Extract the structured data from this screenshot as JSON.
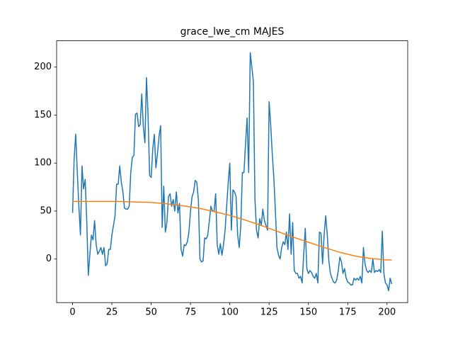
{
  "chart_data": {
    "type": "line",
    "title": "grace_lwe_cm MAJES",
    "xlim": [
      -10.15,
      213.15
    ],
    "ylim": [
      -45.4,
      227.4
    ],
    "xticks": [
      0,
      25,
      50,
      75,
      100,
      125,
      150,
      175,
      200
    ],
    "yticks": [
      0,
      50,
      100,
      150,
      200
    ],
    "series": [
      {
        "color": "#1f77b4",
        "x": [
          0,
          1,
          2,
          3,
          4,
          5,
          6,
          7,
          8,
          9,
          10,
          11,
          12,
          13,
          14,
          15,
          16,
          17,
          18,
          19,
          20,
          21,
          22,
          23,
          24,
          25,
          26,
          27,
          28,
          29,
          30,
          31,
          32,
          33,
          34,
          35,
          36,
          37,
          38,
          39,
          40,
          41,
          42,
          43,
          44,
          45,
          46,
          47,
          48,
          49,
          50,
          51,
          52,
          53,
          54,
          55,
          56,
          57,
          58,
          59,
          60,
          61,
          62,
          63,
          64,
          65,
          66,
          67,
          68,
          69,
          70,
          71,
          72,
          73,
          74,
          75,
          76,
          77,
          78,
          79,
          80,
          81,
          82,
          83,
          84,
          85,
          86,
          87,
          88,
          89,
          90,
          91,
          92,
          93,
          94,
          95,
          96,
          97,
          98,
          99,
          100,
          101,
          102,
          103,
          104,
          105,
          106,
          107,
          108,
          109,
          110,
          111,
          112,
          113,
          114,
          115,
          116,
          117,
          118,
          119,
          120,
          121,
          122,
          123,
          124,
          125,
          126,
          127,
          128,
          129,
          130,
          131,
          132,
          133,
          134,
          135,
          136,
          137,
          138,
          139,
          140,
          141,
          142,
          143,
          144,
          145,
          146,
          147,
          148,
          149,
          150,
          151,
          152,
          153,
          154,
          155,
          156,
          157,
          158,
          159,
          160,
          161,
          162,
          163,
          164,
          165,
          166,
          167,
          168,
          169,
          170,
          171,
          172,
          173,
          174,
          175,
          176,
          177,
          178,
          179,
          180,
          181,
          182,
          183,
          184,
          185,
          186,
          187,
          188,
          189,
          190,
          191,
          192,
          193,
          194,
          195,
          196,
          197,
          198,
          199,
          200,
          201,
          202,
          203
        ],
        "values": [
          48,
          105,
          130,
          90,
          55,
          25,
          97,
          73,
          83,
          40,
          -17,
          5,
          25,
          20,
          40,
          15,
          5,
          8,
          12,
          5,
          12,
          -7,
          -5,
          10,
          10,
          25,
          35,
          45,
          78,
          78,
          97,
          80,
          70,
          53,
          52,
          52,
          55,
          90,
          106,
          108,
          151,
          152,
          138,
          140,
          172,
          138,
          121,
          189,
          150,
          87,
          85,
          115,
          130,
          95,
          110,
          128,
          139,
          33,
          76,
          28,
          38,
          65,
          68,
          55,
          62,
          50,
          70,
          48,
          58,
          10,
          3,
          15,
          14,
          18,
          28,
          50,
          65,
          70,
          82,
          80,
          62,
          0,
          -3,
          -2,
          22,
          21,
          25,
          40,
          55,
          50,
          50,
          68,
          15,
          5,
          16,
          4,
          15,
          30,
          55,
          80,
          100,
          30,
          72,
          70,
          65,
          25,
          12,
          35,
          90,
          90,
          120,
          147,
          90,
          215,
          200,
          185,
          62,
          30,
          22,
          42,
          35,
          52,
          40,
          35,
          30,
          164,
          140,
          110,
          85,
          50,
          12,
          4,
          0,
          12,
          18,
          15,
          28,
          10,
          47,
          5,
          38,
          -12,
          -15,
          -15,
          -20,
          -18,
          -25,
          5,
          32,
          -10,
          -15,
          -12,
          -14,
          -18,
          -20,
          -15,
          -25,
          28,
          27,
          -5,
          25,
          45,
          25,
          -2,
          -15,
          -20,
          -24,
          -25,
          -22,
          -12,
          2,
          -3,
          -15,
          -10,
          -20,
          -24,
          -25,
          -27,
          -27,
          -20,
          -22,
          -20,
          -22,
          -18,
          -25,
          12,
          -5,
          -12,
          -14,
          -12,
          -14,
          0,
          -14,
          -12,
          -13,
          -11,
          -14,
          29,
          -15,
          -25,
          -27,
          -33,
          -20,
          -26
        ]
      },
      {
        "color": "#ff7f0e",
        "x": [
          0,
          10,
          20,
          30,
          40,
          50,
          60,
          70,
          80,
          90,
          100,
          110,
          120,
          130,
          140,
          150,
          160,
          170,
          180,
          190,
          200,
          203
        ],
        "values": [
          60,
          60,
          60,
          60,
          59.5,
          59,
          57.5,
          55.5,
          53,
          49.5,
          45.5,
          40.5,
          35,
          29,
          23,
          17.5,
          12,
          7,
          3,
          0.5,
          -1,
          -1
        ]
      }
    ]
  }
}
